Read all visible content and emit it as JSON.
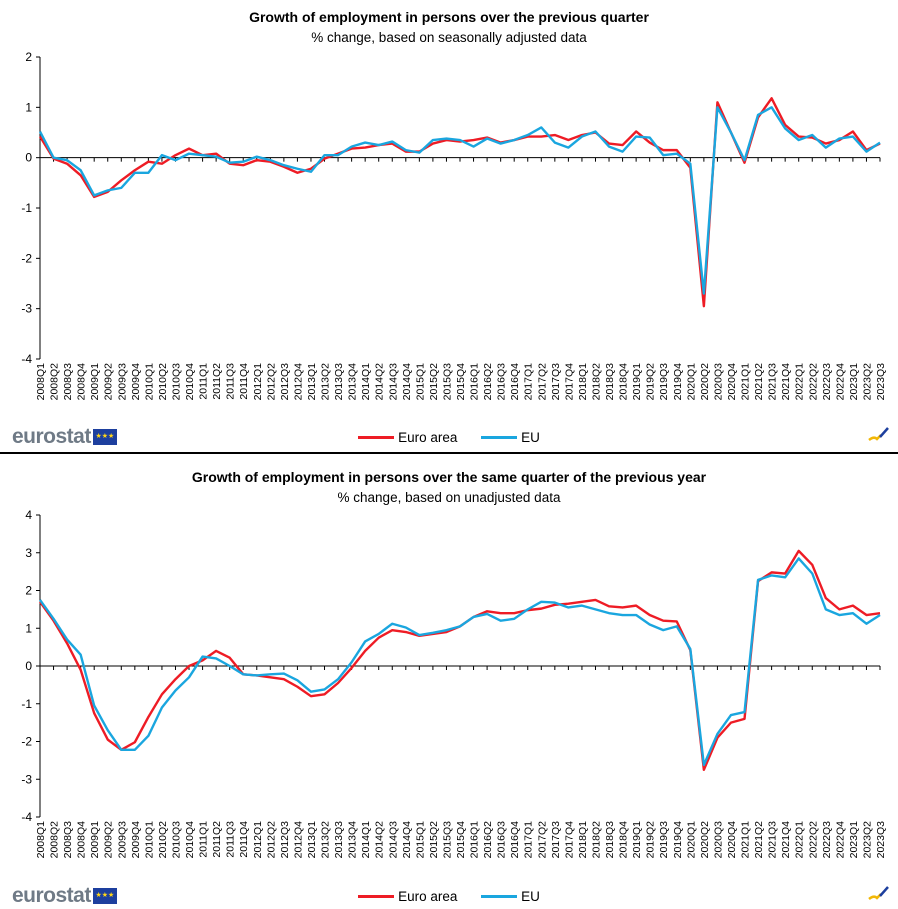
{
  "logo": {
    "text": "eurostat"
  },
  "colors": {
    "euro_area": "#ee1c25",
    "eu": "#1aa6df"
  },
  "chart_data": [
    {
      "type": "line",
      "title": "Growth of employment in persons over the previous quarter",
      "subtitle": "% change, based on seasonally adjusted data",
      "ylim": [
        -4,
        2
      ],
      "yticks": [
        "2",
        "1",
        "0",
        "-1",
        "-2",
        "-3",
        "-4"
      ],
      "legend": [
        "Euro area",
        "EU"
      ],
      "x": [
        "2008Q1",
        "2008Q2",
        "2008Q3",
        "2008Q4",
        "2009Q1",
        "2009Q2",
        "2009Q3",
        "2009Q4",
        "2010Q1",
        "2010Q2",
        "2010Q3",
        "2010Q4",
        "2011Q1",
        "2011Q2",
        "2011Q3",
        "2011Q4",
        "2012Q1",
        "2012Q2",
        "2012Q3",
        "2012Q4",
        "2013Q1",
        "2013Q2",
        "2013Q3",
        "2013Q4",
        "2014Q1",
        "2014Q2",
        "2014Q3",
        "2014Q4",
        "2015Q1",
        "2015Q2",
        "2015Q3",
        "2015Q4",
        "2016Q1",
        "2016Q2",
        "2016Q3",
        "2016Q4",
        "2017Q1",
        "2017Q2",
        "2017Q3",
        "2017Q4",
        "2018Q1",
        "2018Q2",
        "2018Q3",
        "2018Q4",
        "2019Q1",
        "2019Q2",
        "2019Q3",
        "2019Q4",
        "2020Q1",
        "2020Q2",
        "2020Q3",
        "2020Q4",
        "2021Q1",
        "2021Q2",
        "2021Q3",
        "2021Q4",
        "2022Q1",
        "2022Q2",
        "2022Q3",
        "2022Q4",
        "2023Q1",
        "2023Q2",
        "2023Q3"
      ],
      "series": [
        {
          "name": "Euro area",
          "values": [
            0.42,
            -0.02,
            -0.12,
            -0.35,
            -0.78,
            -0.68,
            -0.45,
            -0.25,
            -0.08,
            -0.12,
            0.05,
            0.18,
            0.05,
            0.08,
            -0.12,
            -0.15,
            -0.05,
            -0.08,
            -0.18,
            -0.3,
            -0.22,
            -0.02,
            0.08,
            0.18,
            0.2,
            0.25,
            0.28,
            0.12,
            0.12,
            0.28,
            0.35,
            0.32,
            0.35,
            0.4,
            0.3,
            0.35,
            0.42,
            0.42,
            0.45,
            0.35,
            0.45,
            0.5,
            0.28,
            0.25,
            0.52,
            0.3,
            0.15,
            0.15,
            -0.2,
            -2.95,
            1.1,
            0.5,
            -0.1,
            0.8,
            1.18,
            0.65,
            0.42,
            0.4,
            0.28,
            0.35,
            0.52,
            0.15,
            0.28
          ]
        },
        {
          "name": "EU",
          "values": [
            0.52,
            0.0,
            -0.05,
            -0.25,
            -0.75,
            -0.65,
            -0.6,
            -0.3,
            -0.3,
            0.05,
            -0.05,
            0.08,
            0.05,
            0.02,
            -0.1,
            -0.08,
            0.02,
            -0.05,
            -0.15,
            -0.22,
            -0.28,
            0.05,
            0.05,
            0.22,
            0.3,
            0.25,
            0.32,
            0.15,
            0.1,
            0.35,
            0.38,
            0.35,
            0.22,
            0.38,
            0.28,
            0.35,
            0.45,
            0.6,
            0.3,
            0.2,
            0.42,
            0.52,
            0.22,
            0.12,
            0.42,
            0.4,
            0.05,
            0.08,
            -0.12,
            -2.7,
            1.0,
            0.5,
            -0.05,
            0.85,
            1.0,
            0.58,
            0.35,
            0.45,
            0.2,
            0.38,
            0.42,
            0.12,
            0.3
          ]
        }
      ]
    },
    {
      "type": "line",
      "title": "Growth of employment in persons over the same quarter of the previous year",
      "subtitle": "% change, based on unadjusted data",
      "ylim": [
        -4,
        4
      ],
      "yticks": [
        "4",
        "3",
        "2",
        "1",
        "0",
        "-1",
        "-2",
        "-3",
        "-4"
      ],
      "legend": [
        "Euro area",
        "EU"
      ],
      "x": [
        "2008Q1",
        "2008Q2",
        "2008Q3",
        "2008Q4",
        "2009Q1",
        "2009Q2",
        "2009Q3",
        "2009Q4",
        "2010Q1",
        "2010Q2",
        "2010Q3",
        "2010Q4",
        "2011Q1",
        "2011Q2",
        "2011Q3",
        "2011Q4",
        "2012Q1",
        "2012Q2",
        "2012Q3",
        "2012Q4",
        "2013Q1",
        "2013Q2",
        "2013Q3",
        "2013Q4",
        "2014Q1",
        "2014Q2",
        "2014Q3",
        "2014Q4",
        "2015Q1",
        "2015Q2",
        "2015Q3",
        "2015Q4",
        "2016Q1",
        "2016Q2",
        "2016Q3",
        "2016Q4",
        "2017Q1",
        "2017Q2",
        "2017Q3",
        "2017Q4",
        "2018Q1",
        "2018Q2",
        "2018Q3",
        "2018Q4",
        "2019Q1",
        "2019Q2",
        "2019Q3",
        "2019Q4",
        "2020Q1",
        "2020Q2",
        "2020Q3",
        "2020Q4",
        "2021Q1",
        "2021Q2",
        "2021Q3",
        "2021Q4",
        "2022Q1",
        "2022Q2",
        "2022Q3",
        "2022Q4",
        "2023Q1",
        "2023Q2",
        "2023Q3"
      ],
      "series": [
        {
          "name": "Euro area",
          "values": [
            1.7,
            1.2,
            0.6,
            -0.1,
            -1.25,
            -1.95,
            -2.22,
            -2.02,
            -1.35,
            -0.75,
            -0.35,
            0.0,
            0.15,
            0.4,
            0.22,
            -0.22,
            -0.25,
            -0.3,
            -0.35,
            -0.55,
            -0.8,
            -0.75,
            -0.45,
            -0.05,
            0.4,
            0.75,
            0.95,
            0.9,
            0.8,
            0.85,
            0.9,
            1.05,
            1.3,
            1.45,
            1.4,
            1.4,
            1.48,
            1.52,
            1.62,
            1.65,
            1.7,
            1.75,
            1.58,
            1.55,
            1.6,
            1.35,
            1.2,
            1.18,
            0.42,
            -2.75,
            -1.9,
            -1.5,
            -1.4,
            2.25,
            2.48,
            2.45,
            3.05,
            2.68,
            1.8,
            1.5,
            1.6,
            1.35,
            1.4
          ]
        },
        {
          "name": "EU",
          "values": [
            1.75,
            1.25,
            0.7,
            0.3,
            -1.05,
            -1.7,
            -2.22,
            -2.22,
            -1.85,
            -1.1,
            -0.65,
            -0.3,
            0.25,
            0.2,
            0.0,
            -0.22,
            -0.25,
            -0.22,
            -0.2,
            -0.38,
            -0.68,
            -0.62,
            -0.35,
            0.1,
            0.65,
            0.85,
            1.12,
            1.02,
            0.82,
            0.88,
            0.95,
            1.05,
            1.3,
            1.38,
            1.2,
            1.25,
            1.5,
            1.7,
            1.68,
            1.55,
            1.6,
            1.5,
            1.4,
            1.35,
            1.35,
            1.1,
            0.95,
            1.05,
            0.45,
            -2.62,
            -1.8,
            -1.3,
            -1.22,
            2.28,
            2.4,
            2.35,
            2.85,
            2.45,
            1.5,
            1.35,
            1.4,
            1.12,
            1.35
          ]
        }
      ]
    }
  ]
}
